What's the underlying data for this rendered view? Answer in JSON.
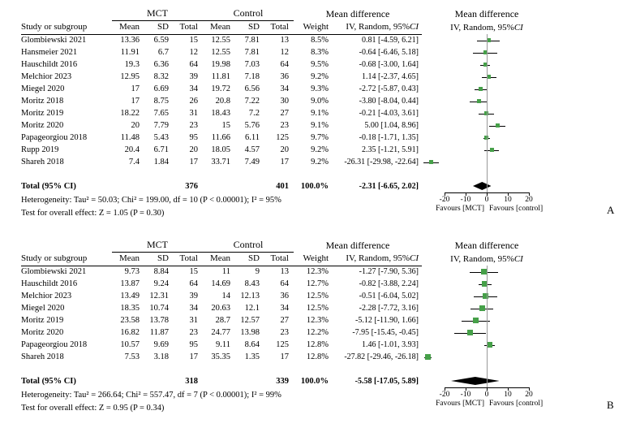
{
  "colors": {
    "marker": "#46a049",
    "diamond": "#000000",
    "ci_line": "#000000",
    "zero_line": "#999999",
    "axis": "#000000"
  },
  "chart_data": {
    "type": "forest",
    "header": {
      "group1": "MCT",
      "group2": "Control",
      "mean_diff": "Mean difference",
      "study": "Study or subgroup",
      "mean": "Mean",
      "sd": "SD",
      "total": "Total",
      "weight": "Weight",
      "iv_prefix": "IV, Random, 95%",
      "iv_ci": "CI"
    },
    "axis": {
      "min": -20,
      "max": 20,
      "ticks": [
        -20,
        -10,
        0,
        10,
        20
      ],
      "favours_left": "Favours [MCT]",
      "favours_right": "Favours [control]"
    },
    "panels": [
      {
        "label": "A",
        "rows": [
          {
            "study": "Glombiewski 2021",
            "mean1": "13.36",
            "sd1": "6.59",
            "total1": "15",
            "mean2": "12.55",
            "sd2": "7.81",
            "total2": "13",
            "weight": "8.5%",
            "ci_text": "0.81 [-4.59, 6.21]",
            "est": 0.81,
            "lo": -4.59,
            "hi": 6.21,
            "w": 8.5
          },
          {
            "study": "Hansmeier 2021",
            "mean1": "11.91",
            "sd1": "6.7",
            "total1": "12",
            "mean2": "12.55",
            "sd2": "7.81",
            "total2": "12",
            "weight": "8.3%",
            "ci_text": "-0.64 [-6.46, 5.18]",
            "est": -0.64,
            "lo": -6.46,
            "hi": 5.18,
            "w": 8.3
          },
          {
            "study": "Hauschildt 2016",
            "mean1": "19.3",
            "sd1": "6.36",
            "total1": "64",
            "mean2": "19.98",
            "sd2": "7.03",
            "total2": "64",
            "weight": "9.5%",
            "ci_text": "-0.68 [-3.00, 1.64]",
            "est": -0.68,
            "lo": -3.0,
            "hi": 1.64,
            "w": 9.5
          },
          {
            "study": "Melchior 2023",
            "mean1": "12.95",
            "sd1": "8.32",
            "total1": "39",
            "mean2": "11.81",
            "sd2": "7.18",
            "total2": "36",
            "weight": "9.2%",
            "ci_text": "1.14 [-2.37, 4.65]",
            "est": 1.14,
            "lo": -2.37,
            "hi": 4.65,
            "w": 9.2
          },
          {
            "study": "Miegel 2020",
            "mean1": "17",
            "sd1": "6.69",
            "total1": "34",
            "mean2": "19.72",
            "sd2": "6.56",
            "total2": "34",
            "weight": "9.3%",
            "ci_text": "-2.72 [-5.87, 0.43]",
            "est": -2.72,
            "lo": -5.87,
            "hi": 0.43,
            "w": 9.3
          },
          {
            "study": "Moritz 2018",
            "mean1": "17",
            "sd1": "8.75",
            "total1": "26",
            "mean2": "20.8",
            "sd2": "7.22",
            "total2": "30",
            "weight": "9.0%",
            "ci_text": "-3.80 [-8.04, 0.44]",
            "est": -3.8,
            "lo": -8.04,
            "hi": 0.44,
            "w": 9.0
          },
          {
            "study": "Moritz 2019",
            "mean1": "18.22",
            "sd1": "7.65",
            "total1": "31",
            "mean2": "18.43",
            "sd2": "7.2",
            "total2": "27",
            "weight": "9.1%",
            "ci_text": "-0.21 [-4.03, 3.61]",
            "est": -0.21,
            "lo": -4.03,
            "hi": 3.61,
            "w": 9.1
          },
          {
            "study": "Moritz 2020",
            "mean1": "20",
            "sd1": "7.79",
            "total1": "23",
            "mean2": "15",
            "sd2": "5.76",
            "total2": "23",
            "weight": "9.1%",
            "ci_text": "5.00 [1.04, 8.96]",
            "est": 5.0,
            "lo": 1.04,
            "hi": 8.96,
            "w": 9.1
          },
          {
            "study": "Papageorgiou 2018",
            "mean1": "11.48",
            "sd1": "5.43",
            "total1": "95",
            "mean2": "11.66",
            "sd2": "6.11",
            "total2": "125",
            "weight": "9.7%",
            "ci_text": "-0.18 [-1.71, 1.35]",
            "est": -0.18,
            "lo": -1.71,
            "hi": 1.35,
            "w": 9.7
          },
          {
            "study": "Rupp 2019",
            "mean1": "20.4",
            "sd1": "6.71",
            "total1": "20",
            "mean2": "18.05",
            "sd2": "4.57",
            "total2": "20",
            "weight": "9.2%",
            "ci_text": "2.35 [-1.21, 5.91]",
            "est": 2.35,
            "lo": -1.21,
            "hi": 5.91,
            "w": 9.2
          },
          {
            "study": "Shareh 2018",
            "mean1": "7.4",
            "sd1": "1.84",
            "total1": "17",
            "mean2": "33.71",
            "sd2": "7.49",
            "total2": "17",
            "weight": "9.2%",
            "ci_text": "-26.31 [-29.98, -22.64]",
            "est": -26.31,
            "lo": -29.98,
            "hi": -22.64,
            "w": 9.2
          }
        ],
        "total": {
          "label": "Total (95% CI)",
          "total1": "376",
          "total2": "401",
          "weight": "100.0%",
          "ci_text": "-2.31 [-6.65, 2.02]",
          "est": -2.31,
          "lo": -6.65,
          "hi": 2.02
        },
        "heterogeneity": "Heterogeneity: Tau² = 50.03; Chi² = 199.00, df = 10 (P < 0.00001); I² = 95%",
        "overall_effect": "Test for overall effect: Z = 1.05 (P = 0.30)"
      },
      {
        "label": "B",
        "rows": [
          {
            "study": "Glombiewski 2021",
            "mean1": "9.73",
            "sd1": "8.84",
            "total1": "15",
            "mean2": "11",
            "sd2": "9",
            "total2": "13",
            "weight": "12.3%",
            "ci_text": "-1.27 [-7.90, 5.36]",
            "est": -1.27,
            "lo": -7.9,
            "hi": 5.36,
            "w": 12.3
          },
          {
            "study": "Hauschildt 2016",
            "mean1": "13.87",
            "sd1": "9.24",
            "total1": "64",
            "mean2": "14.69",
            "sd2": "8.43",
            "total2": "64",
            "weight": "12.7%",
            "ci_text": "-0.82 [-3.88, 2.24]",
            "est": -0.82,
            "lo": -3.88,
            "hi": 2.24,
            "w": 12.7
          },
          {
            "study": "Melchior 2023",
            "mean1": "13.49",
            "sd1": "12.31",
            "total1": "39",
            "mean2": "14",
            "sd2": "12.13",
            "total2": "36",
            "weight": "12.5%",
            "ci_text": "-0.51 [-6.04, 5.02]",
            "est": -0.51,
            "lo": -6.04,
            "hi": 5.02,
            "w": 12.5
          },
          {
            "study": "Miegel 2020",
            "mean1": "18.35",
            "sd1": "10.74",
            "total1": "34",
            "mean2": "20.63",
            "sd2": "12.1",
            "total2": "34",
            "weight": "12.5%",
            "ci_text": "-2.28 [-7.72, 3.16]",
            "est": -2.28,
            "lo": -7.72,
            "hi": 3.16,
            "w": 12.5
          },
          {
            "study": "Moritz 2019",
            "mean1": "23.58",
            "sd1": "13.78",
            "total1": "31",
            "mean2": "28.7",
            "sd2": "12.57",
            "total2": "27",
            "weight": "12.3%",
            "ci_text": "-5.12 [-11.90, 1.66]",
            "est": -5.12,
            "lo": -11.9,
            "hi": 1.66,
            "w": 12.3
          },
          {
            "study": "Moritz 2020",
            "mean1": "16.82",
            "sd1": "11.87",
            "total1": "23",
            "mean2": "24.77",
            "sd2": "13.98",
            "total2": "23",
            "weight": "12.2%",
            "ci_text": "-7.95 [-15.45, -0.45]",
            "est": -7.95,
            "lo": -15.45,
            "hi": -0.45,
            "w": 12.2
          },
          {
            "study": "Papageorgiou 2018",
            "mean1": "10.57",
            "sd1": "9.69",
            "total1": "95",
            "mean2": "9.11",
            "sd2": "8.64",
            "total2": "125",
            "weight": "12.8%",
            "ci_text": "1.46 [-1.01, 3.93]",
            "est": 1.46,
            "lo": -1.01,
            "hi": 3.93,
            "w": 12.8
          },
          {
            "study": "Shareh 2018",
            "mean1": "7.53",
            "sd1": "3.18",
            "total1": "17",
            "mean2": "35.35",
            "sd2": "1.35",
            "total2": "17",
            "weight": "12.8%",
            "ci_text": "-27.82 [-29.46, -26.18]",
            "est": -27.82,
            "lo": -29.46,
            "hi": -26.18,
            "w": 12.8
          }
        ],
        "total": {
          "label": "Total (95% CI)",
          "total1": "318",
          "total2": "339",
          "weight": "100.0%",
          "ci_text": "-5.58 [-17.05, 5.89]",
          "est": -5.58,
          "lo": -17.05,
          "hi": 5.89
        },
        "heterogeneity": "Heterogeneity: Tau² = 266.64; Chi² = 557.47, df = 7 (P < 0.00001); I² = 99%",
        "overall_effect": "Test for overall effect: Z = 0.95 (P = 0.34)"
      }
    ]
  }
}
